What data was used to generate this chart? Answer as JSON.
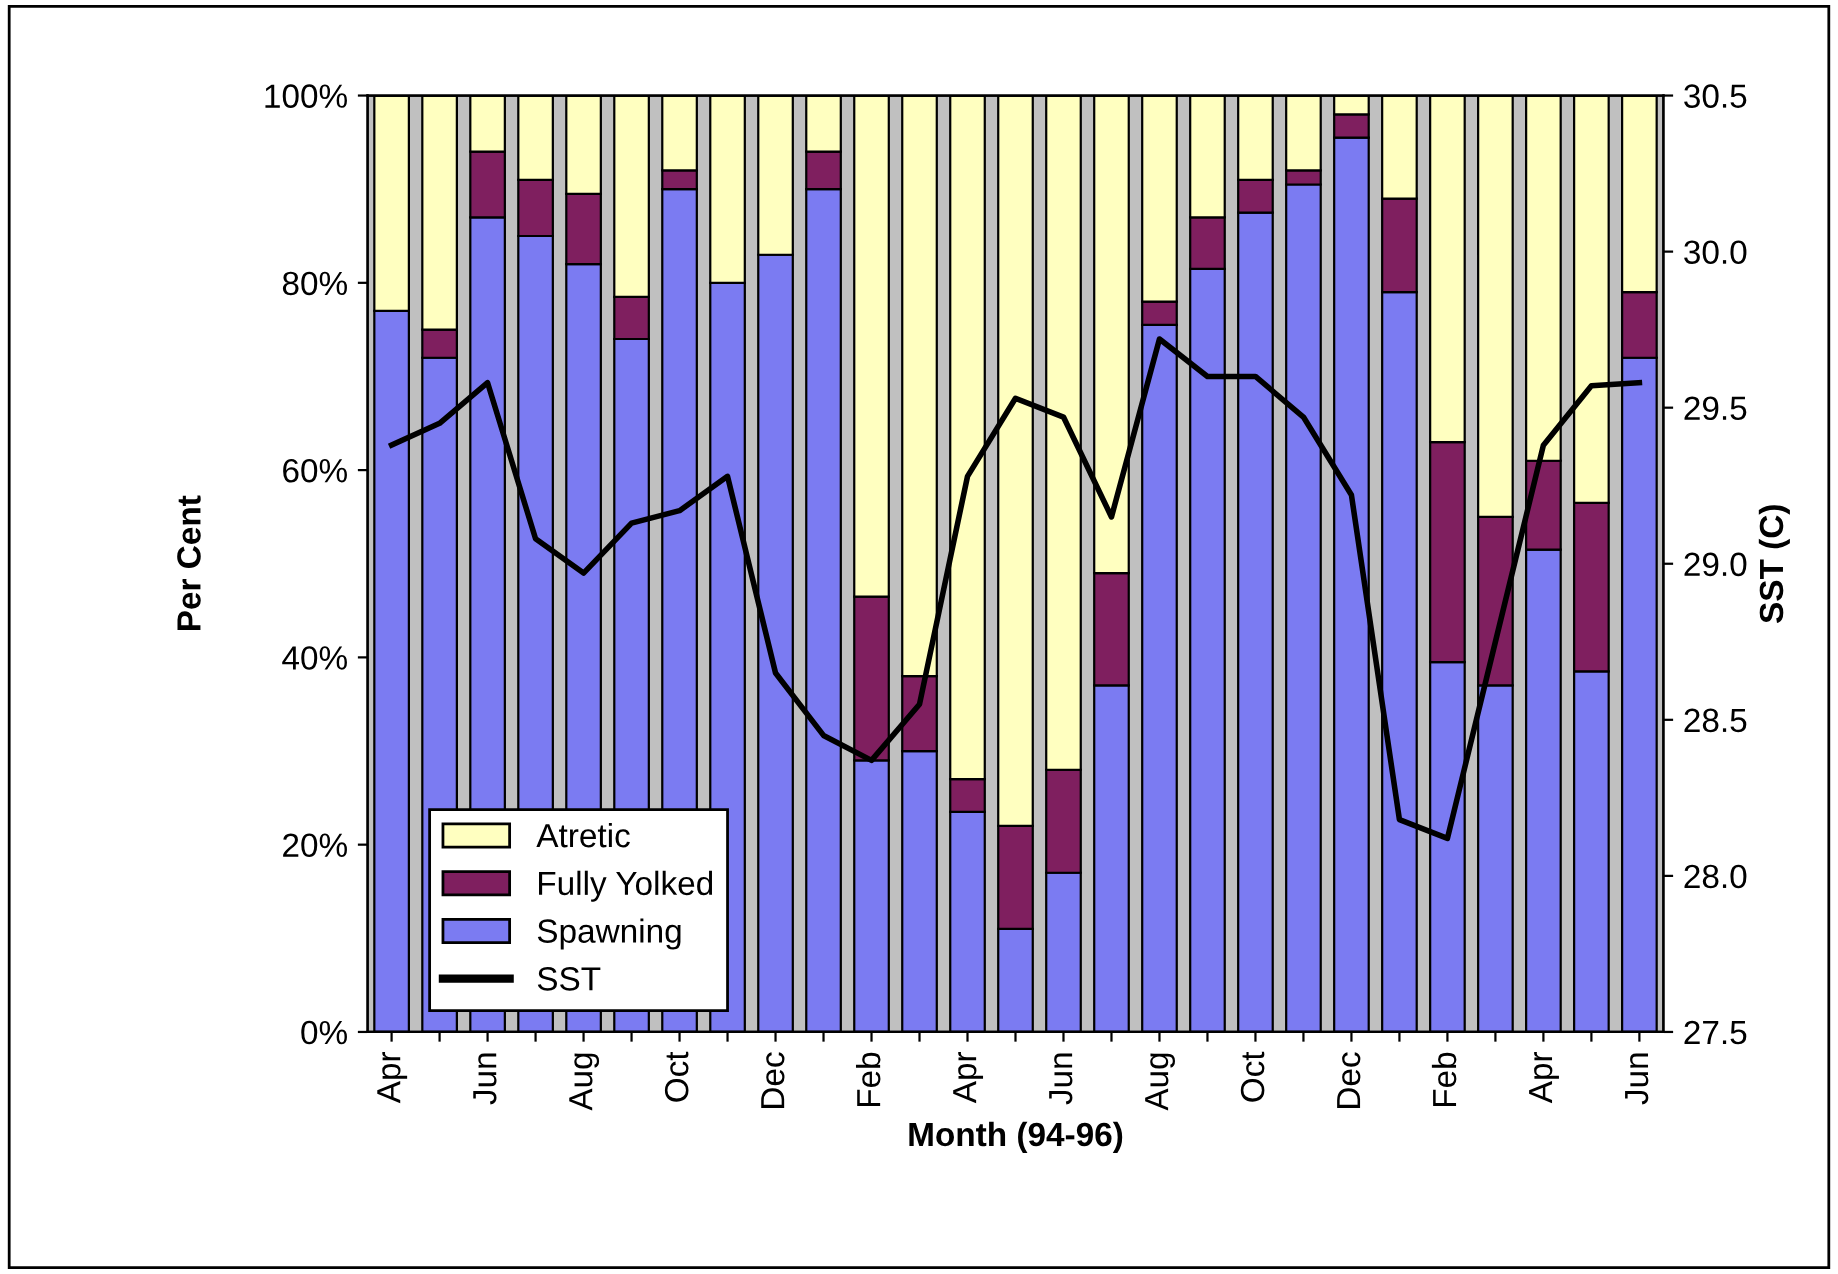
{
  "chart_data": {
    "type": "bar",
    "stacked": true,
    "xlabel": "Month (94-96)",
    "ylabel": "Per Cent",
    "y2label": "SST (C)",
    "categories": [
      "Apr",
      null,
      "Jun",
      null,
      "Aug",
      null,
      "Oct",
      null,
      "Dec",
      null,
      "Feb",
      null,
      "Apr",
      null,
      "Jun",
      null,
      "Aug",
      null,
      "Oct",
      null,
      "Dec",
      null,
      "Feb",
      null,
      "Apr",
      null,
      "Jun"
    ],
    "series": [
      {
        "name": "Spawning",
        "color": "#7b7bf2",
        "values": [
          77,
          72,
          87,
          85,
          82,
          74,
          90,
          80,
          83,
          90,
          29,
          30,
          23.5,
          11,
          17,
          37,
          75.5,
          81.5,
          87.5,
          90.5,
          95.5,
          79,
          39.5,
          37,
          51.5,
          38.5,
          72
        ]
      },
      {
        "name": "Fully Yolked",
        "color": "#7f1f5f",
        "values": [
          null,
          3,
          7,
          6,
          7.5,
          4.5,
          2,
          null,
          null,
          4,
          17.5,
          8,
          3.5,
          11,
          11,
          12,
          2.5,
          5.5,
          3.5,
          1.5,
          2.5,
          10,
          23.5,
          18,
          9.5,
          18,
          7
        ]
      },
      {
        "name": "Atretic",
        "color": "#ffffc0",
        "values": [
          23,
          25,
          6,
          9,
          10.5,
          21.5,
          8,
          20,
          17,
          6,
          53.5,
          62,
          73,
          78,
          72,
          51,
          22,
          13,
          9,
          8,
          2,
          11,
          37,
          45,
          39,
          43.5,
          21
        ]
      },
      {
        "name": "SST",
        "type": "line",
        "axis": "y2",
        "color": "#000000",
        "values": [
          29.38,
          29.45,
          29.58,
          29.08,
          28.97,
          29.13,
          29.17,
          29.28,
          28.65,
          28.45,
          28.37,
          28.55,
          29.28,
          29.53,
          29.47,
          29.15,
          29.72,
          29.6,
          29.6,
          29.47,
          29.22,
          28.18,
          28.12,
          28.75,
          29.38,
          29.57,
          29.58
        ]
      }
    ],
    "ylim": [
      0,
      100
    ],
    "yticks": [
      {
        "value": 0,
        "label": "0%"
      },
      {
        "value": 20,
        "label": "20%"
      },
      {
        "value": 40,
        "label": "40%"
      },
      {
        "value": 60,
        "label": "60%"
      },
      {
        "value": 80,
        "label": "80%"
      },
      {
        "value": 100,
        "label": "100%"
      }
    ],
    "y2lim": [
      27.5,
      30.5
    ],
    "y2ticks": [
      27.5,
      {
        "value": 28,
        "label": "28.0"
      },
      28.5,
      {
        "value": 29,
        "label": "29.0"
      },
      29.5,
      {
        "value": 30,
        "label": "30.0"
      },
      30.5
    ],
    "legend": "bottom left",
    "grid": false
  }
}
